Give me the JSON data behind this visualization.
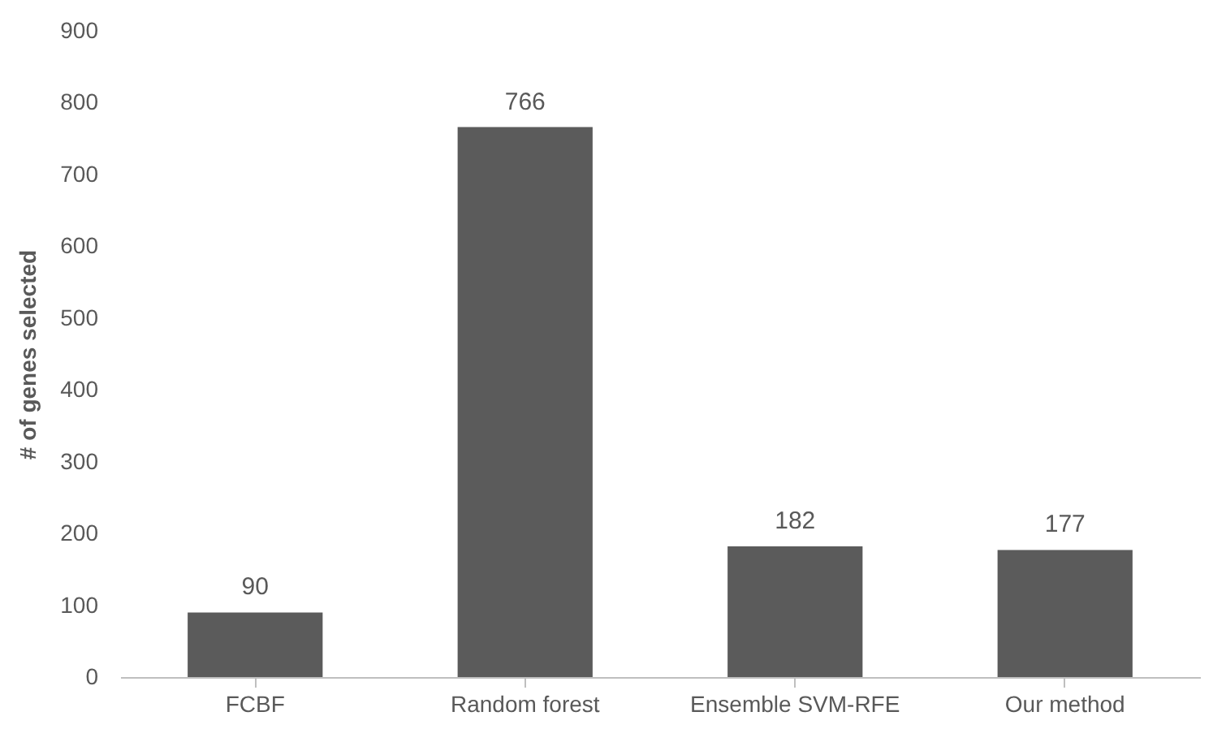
{
  "chart_data": {
    "type": "bar",
    "ylabel": "# of genes selected",
    "categories": [
      "FCBF",
      "Random forest",
      "Ensemble SVM-RFE",
      "Our method"
    ],
    "values": [
      90,
      766,
      182,
      177
    ],
    "color": "#5b5b5b",
    "ylim": [
      0,
      900
    ],
    "yticks": [
      0,
      100,
      200,
      300,
      400,
      500,
      600,
      700,
      800,
      900
    ],
    "grid": false,
    "data_labels": true
  }
}
